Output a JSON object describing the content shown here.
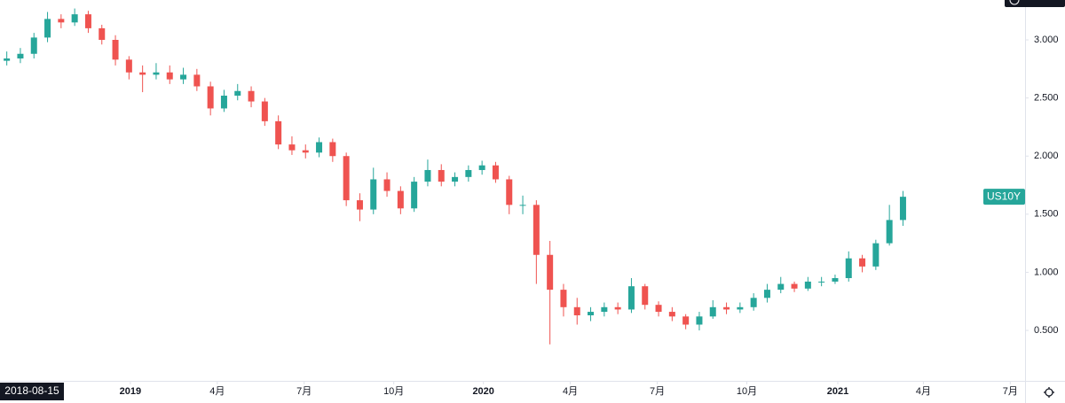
{
  "chart_data": {
    "type": "candlestick",
    "symbol": "US10Y",
    "crosshair_date": "2018-08-15",
    "up_color": "#26a69a",
    "down_color": "#ef5350",
    "label_color": "#26a69a",
    "categories": [
      null,
      null,
      null,
      null,
      null,
      null,
      null,
      null,
      null,
      null,
      null,
      null,
      null,
      null,
      null,
      null,
      null,
      null,
      null,
      null,
      null,
      null,
      null,
      null,
      null,
      null,
      null,
      null,
      null,
      null,
      null,
      null,
      null,
      null,
      null,
      null,
      null,
      null,
      null,
      null,
      null,
      null,
      null,
      null,
      null,
      null,
      null,
      null,
      null,
      null,
      null,
      null,
      null,
      null,
      null,
      null,
      null,
      null,
      null,
      null,
      null,
      null,
      null,
      null,
      null,
      null,
      null
    ],
    "open": [
      2.82,
      2.84,
      2.88,
      3.02,
      3.18,
      3.15,
      3.22,
      3.1,
      3.0,
      2.83,
      2.72,
      2.7,
      2.72,
      2.66,
      2.7,
      2.6,
      2.41,
      2.52,
      2.56,
      2.47,
      2.3,
      2.1,
      2.05,
      2.03,
      2.12,
      2.0,
      1.62,
      1.54,
      1.8,
      1.7,
      1.55,
      1.78,
      1.88,
      1.78,
      1.82,
      1.88,
      1.92,
      1.8,
      1.58,
      1.58,
      1.15,
      0.85,
      0.7,
      0.63,
      0.66,
      0.7,
      0.68,
      0.88,
      0.72,
      0.66,
      0.62,
      0.55,
      0.62,
      0.7,
      0.68,
      0.7,
      0.78,
      0.85,
      0.9,
      0.86,
      0.92,
      0.92,
      0.95,
      1.12,
      1.05,
      1.25,
      1.45
    ],
    "high": [
      2.9,
      2.93,
      3.06,
      3.24,
      3.22,
      3.27,
      3.25,
      3.13,
      3.04,
      2.86,
      2.78,
      2.8,
      2.78,
      2.76,
      2.75,
      2.64,
      2.57,
      2.62,
      2.6,
      2.5,
      2.35,
      2.17,
      2.1,
      2.16,
      2.15,
      2.03,
      1.68,
      1.9,
      1.86,
      1.74,
      1.82,
      1.97,
      1.93,
      1.86,
      1.92,
      1.96,
      1.95,
      1.83,
      1.66,
      1.62,
      1.27,
      0.9,
      0.78,
      0.7,
      0.74,
      0.74,
      0.95,
      0.9,
      0.75,
      0.7,
      0.64,
      0.66,
      0.76,
      0.74,
      0.74,
      0.82,
      0.9,
      0.96,
      0.92,
      0.96,
      0.96,
      0.98,
      1.18,
      1.15,
      1.28,
      1.58,
      1.7
    ],
    "low": [
      2.78,
      2.8,
      2.84,
      2.98,
      3.1,
      3.12,
      3.06,
      2.96,
      2.78,
      2.66,
      2.55,
      2.66,
      2.62,
      2.62,
      2.56,
      2.35,
      2.38,
      2.48,
      2.42,
      2.26,
      2.06,
      2.01,
      1.98,
      1.99,
      1.95,
      1.57,
      1.44,
      1.5,
      1.65,
      1.5,
      1.52,
      1.74,
      1.74,
      1.74,
      1.78,
      1.84,
      1.77,
      1.5,
      1.5,
      0.9,
      0.38,
      0.62,
      0.55,
      0.58,
      0.62,
      0.64,
      0.65,
      0.68,
      0.62,
      0.58,
      0.51,
      0.5,
      0.6,
      0.64,
      0.65,
      0.67,
      0.74,
      0.82,
      0.83,
      0.84,
      0.88,
      0.9,
      0.92,
      1.0,
      1.02,
      1.23,
      1.4
    ],
    "close": [
      2.84,
      2.88,
      3.02,
      3.18,
      3.15,
      3.22,
      3.1,
      3.0,
      2.83,
      2.72,
      2.7,
      2.72,
      2.66,
      2.7,
      2.6,
      2.41,
      2.52,
      2.56,
      2.47,
      2.3,
      2.1,
      2.05,
      2.03,
      2.12,
      2.0,
      1.62,
      1.54,
      1.8,
      1.7,
      1.55,
      1.78,
      1.88,
      1.78,
      1.82,
      1.88,
      1.92,
      1.8,
      1.58,
      1.58,
      1.15,
      0.85,
      0.7,
      0.63,
      0.66,
      0.7,
      0.68,
      0.88,
      0.72,
      0.66,
      0.62,
      0.55,
      0.62,
      0.7,
      0.68,
      0.7,
      0.78,
      0.85,
      0.9,
      0.86,
      0.92,
      0.92,
      0.95,
      1.12,
      1.05,
      1.25,
      1.45,
      1.65
    ],
    "ylim": [
      0.066,
      3.343
    ],
    "yticks": [
      {
        "value": 0.5,
        "label": "0.500"
      },
      {
        "value": 1.0,
        "label": "1.000"
      },
      {
        "value": 1.5,
        "label": "1.500"
      },
      {
        "value": 2.0,
        "label": "2.000"
      },
      {
        "value": 2.5,
        "label": "2.500"
      },
      {
        "value": 3.0,
        "label": "3.000"
      }
    ],
    "xticks": [
      {
        "value": 9.1,
        "label": "2019"
      },
      {
        "value": 15.5,
        "label": "4月"
      },
      {
        "value": 21.9,
        "label": "7月"
      },
      {
        "value": 28.5,
        "label": "10月"
      },
      {
        "value": 35.1,
        "label": "2020"
      },
      {
        "value": 41.5,
        "label": "4月"
      },
      {
        "value": 47.9,
        "label": "7月"
      },
      {
        "value": 54.5,
        "label": "10月"
      },
      {
        "value": 61.2,
        "label": "2021"
      },
      {
        "value": 67.5,
        "label": "4月"
      },
      {
        "value": 73.9,
        "label": "7月"
      }
    ],
    "grid": false
  }
}
